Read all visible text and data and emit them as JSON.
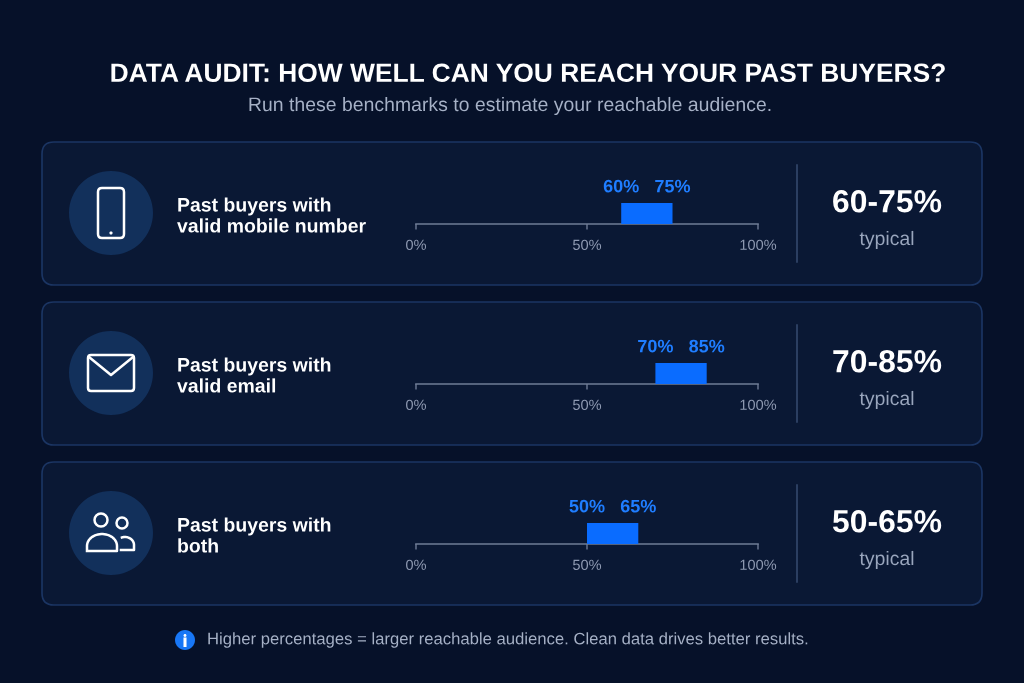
{
  "chart_data": [
    {
      "type": "bar",
      "orientation": "horizontal",
      "title": "DATA AUDIT: HOW WELL CAN YOU REACH YOUR PAST BUYERS?",
      "subtitle": "Run these benchmarks to estimate your reachable audience.",
      "categories": [
        "Past buyers with valid mobile number"
      ],
      "base": [
        60
      ],
      "values": [
        15
      ],
      "color": "#0a6cff",
      "xlim": [
        0,
        100
      ],
      "xticks": [
        {
          "value": 0,
          "label": "0%"
        },
        {
          "value": 50,
          "label": "50%"
        },
        {
          "value": 100,
          "label": "100%"
        }
      ],
      "annotations": [
        {
          "text": "60%",
          "x": 60,
          "y": "Past buyers with valid mobile number"
        },
        {
          "text": "75%",
          "x": 75,
          "y": "Past buyers with valid mobile number"
        },
        "60-75%",
        "typical"
      ]
    },
    {
      "type": "bar",
      "orientation": "horizontal",
      "categories": [
        "Past buyers with valid email"
      ],
      "base": [
        70
      ],
      "values": [
        15
      ],
      "color": "#0a6cff",
      "xlim": [
        0,
        100
      ],
      "xticks": [
        {
          "value": 0,
          "label": "0%"
        },
        {
          "value": 50,
          "label": "50%"
        },
        {
          "value": 100,
          "label": "100%"
        }
      ],
      "annotations": [
        {
          "text": "70%",
          "x": 70,
          "y": "Past buyers with valid email"
        },
        {
          "text": "85%",
          "x": 85,
          "y": "Past buyers with valid email"
        },
        "70-85%",
        "typical"
      ]
    },
    {
      "type": "bar",
      "orientation": "horizontal",
      "categories": [
        "Past buyers with both"
      ],
      "base": [
        50
      ],
      "values": [
        15
      ],
      "color": "#0a6cff",
      "xlim": [
        0,
        100
      ],
      "xticks": [
        {
          "value": 0,
          "label": "0%"
        },
        {
          "value": 50,
          "label": "50%"
        },
        {
          "value": 100,
          "label": "100%"
        }
      ],
      "annotations": [
        {
          "text": "50%",
          "x": 50,
          "y": "Past buyers with both"
        },
        {
          "text": "65%",
          "x": 65,
          "y": "Past buyers with both"
        },
        "50-65%",
        "typical",
        "Higher percentages = larger reachable audience. Clean data drives better results."
      ]
    }
  ]
}
